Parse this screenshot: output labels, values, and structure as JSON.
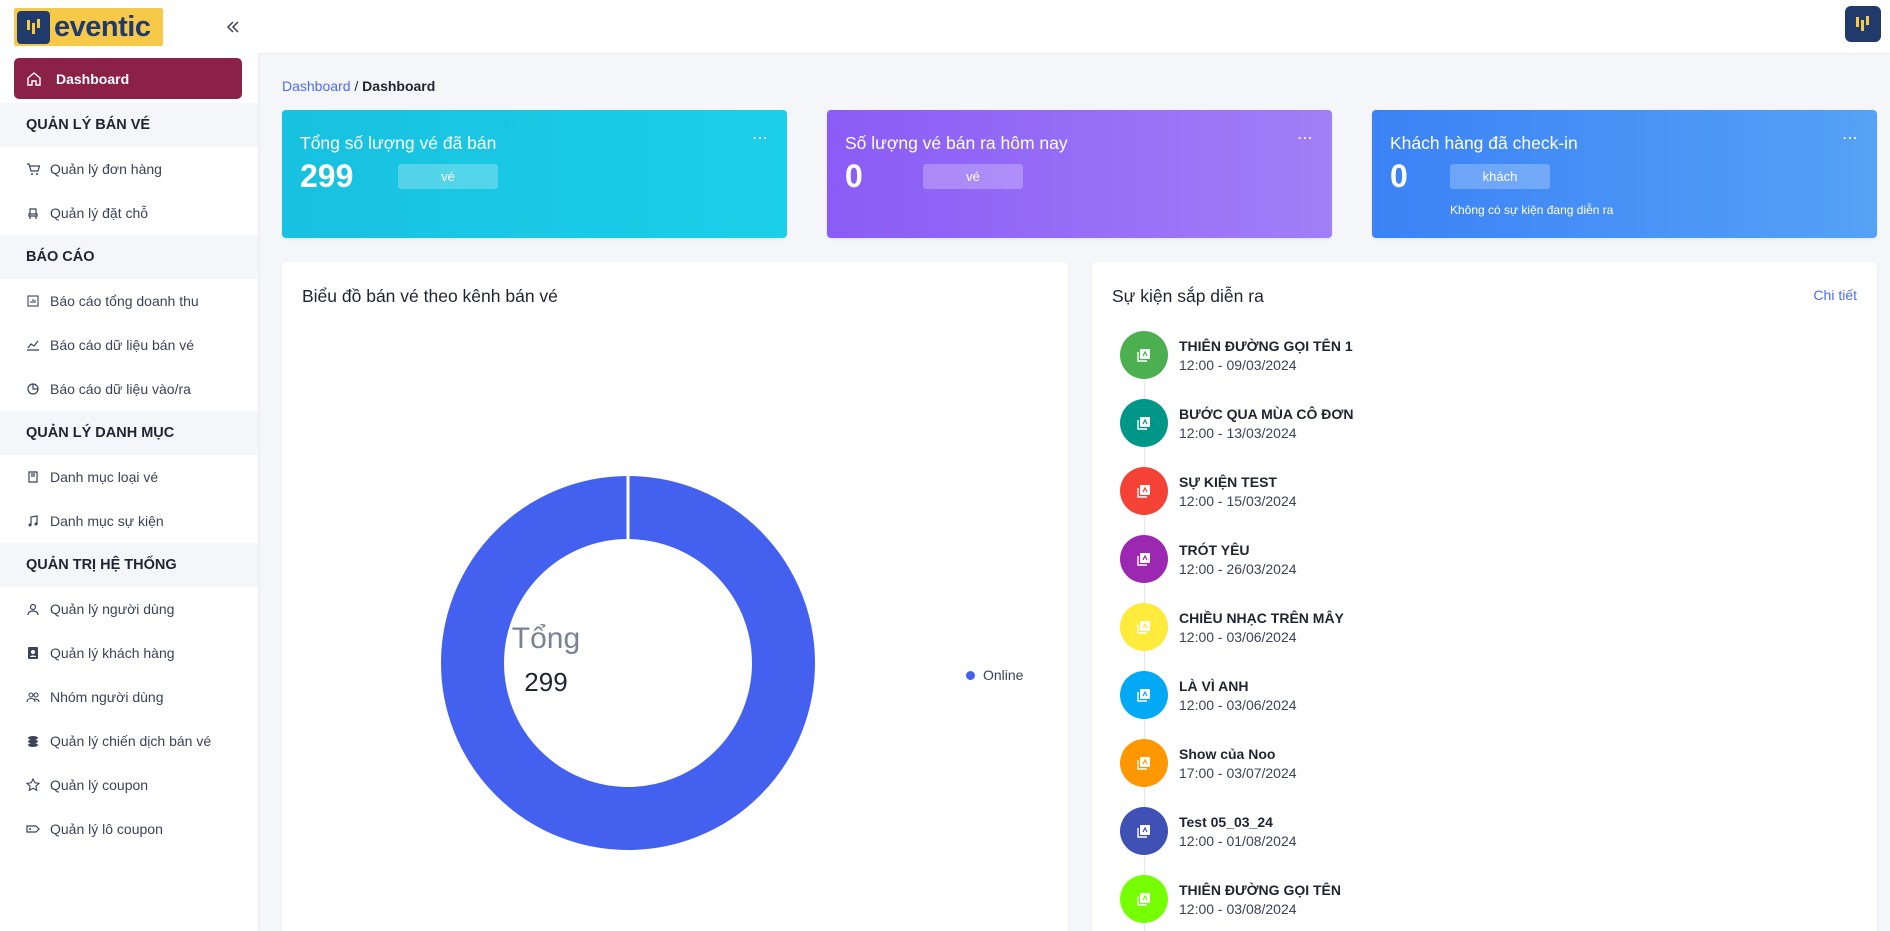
{
  "app": {
    "logo_text": "eventic"
  },
  "sidebar": {
    "active_item": "Dashboard",
    "sections": [
      {
        "title": "QUẢN LÝ BÁN VÉ",
        "items": [
          {
            "label": "Quản lý đơn hàng",
            "icon": "cart-icon"
          },
          {
            "label": "Quản lý đặt chỗ",
            "icon": "seat-icon"
          }
        ]
      },
      {
        "title": "BÁO CÁO",
        "items": [
          {
            "label": "Báo cáo tổng doanh thu",
            "icon": "bar-report-icon"
          },
          {
            "label": "Báo cáo dữ liệu bán vé",
            "icon": "line-chart-icon"
          },
          {
            "label": "Báo cáo dữ liệu vào/ra",
            "icon": "pie-chart-icon"
          }
        ]
      },
      {
        "title": "QUẢN LÝ DANH MỤC",
        "items": [
          {
            "label": "Danh mục loại vé",
            "icon": "book-icon"
          },
          {
            "label": "Danh mục sự kiện",
            "icon": "music-icon"
          }
        ]
      },
      {
        "title": "QUẢN TRỊ HỆ THỐNG",
        "items": [
          {
            "label": "Quản lý người dùng",
            "icon": "user-icon"
          },
          {
            "label": "Quản lý khách hàng",
            "icon": "contact-card-icon"
          },
          {
            "label": "Nhóm người dùng",
            "icon": "users-group-icon"
          },
          {
            "label": "Quản lý chiến dịch bán vé",
            "icon": "coins-icon"
          },
          {
            "label": "Quản lý coupon",
            "icon": "star-badge-icon"
          },
          {
            "label": "Quản lý lô coupon",
            "icon": "ticket-tag-icon"
          }
        ]
      }
    ]
  },
  "breadcrumb": {
    "link": "Dashboard",
    "separator": " / ",
    "current": "Dashboard"
  },
  "stats": [
    {
      "title": "Tổng số lượng vé đã bán",
      "value": "299",
      "unit": "vé",
      "note": ""
    },
    {
      "title": "Số lượng vé bán ra hôm nay",
      "value": "0",
      "unit": "vé",
      "note": ""
    },
    {
      "title": "Khách hàng đã check-in",
      "value": "0",
      "unit": "khách",
      "note": "Không có sự kiện đang diễn ra"
    }
  ],
  "chart_panel": {
    "title": "Biểu đồ bán vé theo kênh bán vé"
  },
  "chart_data": {
    "type": "pie",
    "donut": true,
    "center_label": "Tổng",
    "center_value": "299",
    "categories": [
      "Online"
    ],
    "values": [
      299
    ],
    "colors": [
      "#4361ee"
    ],
    "legend_position": "right"
  },
  "events_panel": {
    "title": "Sự kiện sắp diễn ra",
    "detail_link": "Chi tiết",
    "events": [
      {
        "name": "THIÊN ĐƯỜNG GỌI TÊN 1",
        "time": "12:00 - 09/03/2024",
        "color": "#4caf50"
      },
      {
        "name": "BƯỚC QUA MÙA CÔ ĐƠN",
        "time": "12:00 - 13/03/2024",
        "color": "#009688"
      },
      {
        "name": "SỰ KIỆN TEST",
        "time": "12:00 - 15/03/2024",
        "color": "#f44336"
      },
      {
        "name": "TRÓT YÊU",
        "time": "12:00 - 26/03/2024",
        "color": "#9c27b0"
      },
      {
        "name": "CHIỀU NHẠC TRÊN MÂY",
        "time": "12:00 - 03/06/2024",
        "color": "#ffeb3b"
      },
      {
        "name": "LÀ VÌ ANH",
        "time": "12:00 - 03/06/2024",
        "color": "#03a9f4"
      },
      {
        "name": "Show của Noo",
        "time": "17:00 - 03/07/2024",
        "color": "#ff9800"
      },
      {
        "name": "Test 05_03_24",
        "time": "12:00 - 01/08/2024",
        "color": "#3f51b5"
      },
      {
        "name": "THIÊN ĐƯỜNG GỌI TÊN",
        "time": "12:00 - 03/08/2024",
        "color": "#76ff03"
      }
    ]
  }
}
